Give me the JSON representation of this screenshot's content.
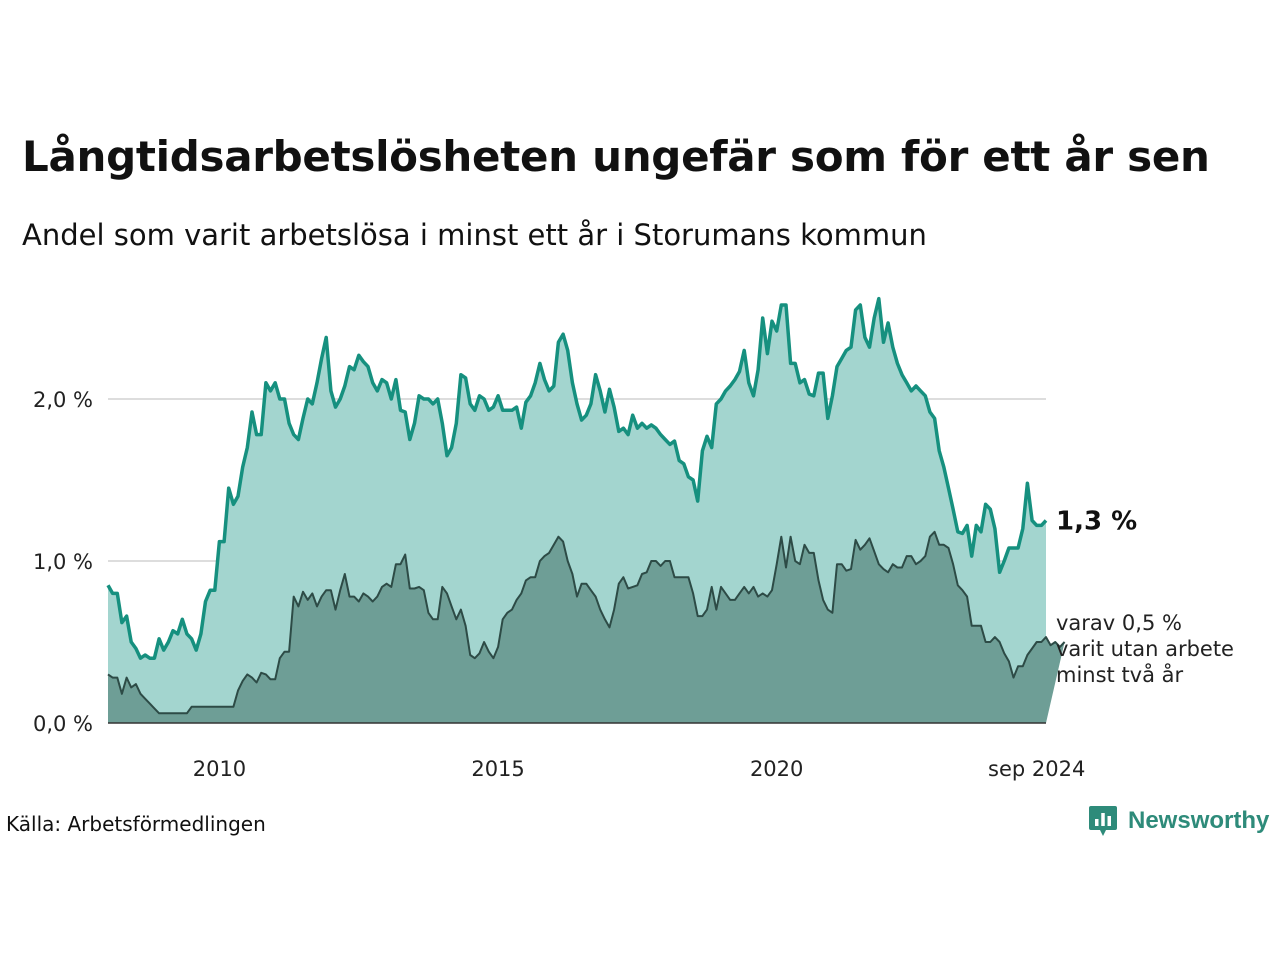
{
  "title": "Långtidsarbetslösheten ungefär som för ett år sen",
  "subtitle": "Andel som varit arbetslösa i minst ett år i Storumans kommun",
  "source": "Källa: Arbetsförmedlingen",
  "brand": {
    "name": "Newsworthy",
    "icon": "bar-chart-icon",
    "color": "#2e8b7a"
  },
  "colors": {
    "area_total": "#a3d5cf",
    "line_total": "#16907f",
    "area_sub": "#6e9e96",
    "line_sub": "#2d4b46",
    "grid": "#dddddd"
  },
  "chart_data": {
    "type": "area",
    "x_start": "jan 2008",
    "x_end": "sep 2024",
    "x_ticks": [
      "2010",
      "2015",
      "2020",
      "sep 2024"
    ],
    "y_ticks": [
      "0,0 %",
      "1,0 %",
      "2,0 %"
    ],
    "ylim": [
      0,
      2.6
    ],
    "grid": true,
    "series": [
      {
        "values": [
          0.85,
          0.8,
          0.8,
          0.62,
          0.66,
          0.5,
          0.46,
          0.4,
          0.42,
          0.4,
          0.4,
          0.52,
          0.45,
          0.5,
          0.57,
          0.55,
          0.64,
          0.55,
          0.52,
          0.45,
          0.55,
          0.75,
          0.82,
          0.82,
          1.12,
          1.12,
          1.45,
          1.35,
          1.4,
          1.58,
          1.7,
          1.92,
          1.78,
          1.78,
          2.1,
          2.05,
          2.1,
          2.0,
          2.0,
          1.85,
          1.78,
          1.75,
          1.88,
          2.0,
          1.97,
          2.1,
          2.25,
          2.38,
          2.05,
          1.95,
          2.0,
          2.08,
          2.2,
          2.18,
          2.27,
          2.23,
          2.2,
          2.1,
          2.05,
          2.12,
          2.1,
          2.0,
          2.12,
          1.93,
          1.92,
          1.75,
          1.85,
          2.02,
          2.0,
          2.0,
          1.97,
          2.0,
          1.85,
          1.65,
          1.7,
          1.85,
          2.15,
          2.13,
          1.97,
          1.93,
          2.02,
          2.0,
          1.93,
          1.95,
          2.02,
          1.93,
          1.93,
          1.93,
          1.95,
          1.82,
          1.98,
          2.02,
          2.1,
          2.22,
          2.12,
          2.05,
          2.08,
          2.35,
          2.4,
          2.3,
          2.1,
          1.97,
          1.87,
          1.9,
          1.97,
          2.15,
          2.05,
          1.92,
          2.06,
          1.95,
          1.8,
          1.82,
          1.78,
          1.9,
          1.82,
          1.85,
          1.82,
          1.84,
          1.82,
          1.78,
          1.75,
          1.72,
          1.74,
          1.62,
          1.6,
          1.52,
          1.5,
          1.37,
          1.68,
          1.77,
          1.7,
          1.97,
          2.0,
          2.05,
          2.08,
          2.12,
          2.17,
          2.3,
          2.1,
          2.02,
          2.18,
          2.5,
          2.28,
          2.48,
          2.42,
          2.58,
          2.58,
          2.22,
          2.22,
          2.1,
          2.12,
          2.03,
          2.02,
          2.16,
          2.16,
          1.88,
          2.02,
          2.2,
          2.25,
          2.3,
          2.32,
          2.55,
          2.58,
          2.38,
          2.32,
          2.5,
          2.62,
          2.35,
          2.47,
          2.32,
          2.22,
          2.15,
          2.1,
          2.05,
          2.08,
          2.05,
          2.02,
          1.92,
          1.88,
          1.68,
          1.58,
          1.45,
          1.32,
          1.18,
          1.17,
          1.22,
          1.03,
          1.22,
          1.18,
          1.35,
          1.32,
          1.2,
          0.93,
          1.0,
          1.08,
          1.08,
          1.08,
          1.2,
          1.48,
          1.25,
          1.22,
          1.22,
          1.25
        ]
      },
      {
        "values": [
          0.3,
          0.28,
          0.28,
          0.18,
          0.28,
          0.22,
          0.24,
          0.18,
          0.15,
          0.12,
          0.09,
          0.06,
          0.06,
          0.06,
          0.06,
          0.06,
          0.06,
          0.06,
          0.1,
          0.1,
          0.1,
          0.1,
          0.1,
          0.1,
          0.1,
          0.1,
          0.1,
          0.1,
          0.2,
          0.26,
          0.3,
          0.28,
          0.25,
          0.31,
          0.3,
          0.27,
          0.27,
          0.4,
          0.44,
          0.44,
          0.78,
          0.72,
          0.81,
          0.76,
          0.8,
          0.72,
          0.78,
          0.82,
          0.82,
          0.7,
          0.82,
          0.92,
          0.78,
          0.78,
          0.75,
          0.8,
          0.78,
          0.75,
          0.78,
          0.84,
          0.86,
          0.84,
          0.98,
          0.98,
          1.04,
          0.83,
          0.83,
          0.84,
          0.82,
          0.68,
          0.64,
          0.64,
          0.84,
          0.8,
          0.72,
          0.64,
          0.7,
          0.6,
          0.42,
          0.4,
          0.43,
          0.5,
          0.44,
          0.4,
          0.47,
          0.64,
          0.68,
          0.7,
          0.76,
          0.8,
          0.88,
          0.9,
          0.9,
          1.0,
          1.03,
          1.05,
          1.1,
          1.15,
          1.12,
          1.0,
          0.92,
          0.78,
          0.86,
          0.86,
          0.82,
          0.78,
          0.7,
          0.64,
          0.59,
          0.7,
          0.86,
          0.9,
          0.83,
          0.84,
          0.85,
          0.92,
          0.93,
          1.0,
          1.0,
          0.97,
          1.0,
          1.0,
          0.9,
          0.9,
          0.9,
          0.9,
          0.8,
          0.66,
          0.66,
          0.7,
          0.84,
          0.7,
          0.84,
          0.8,
          0.76,
          0.76,
          0.8,
          0.84,
          0.8,
          0.84,
          0.78,
          0.8,
          0.78,
          0.82,
          0.98,
          1.15,
          0.96,
          1.15,
          1.0,
          0.98,
          1.1,
          1.05,
          1.05,
          0.88,
          0.76,
          0.7,
          0.68,
          0.98,
          0.98,
          0.94,
          0.95,
          1.13,
          1.07,
          1.1,
          1.14,
          1.06,
          0.98,
          0.95,
          0.93,
          0.98,
          0.96,
          0.96,
          1.03,
          1.03,
          0.98,
          1.0,
          1.03,
          1.15,
          1.18,
          1.1,
          1.1,
          1.08,
          0.98,
          0.85,
          0.82,
          0.78,
          0.6,
          0.6,
          0.6,
          0.5,
          0.5,
          0.53,
          0.5,
          0.43,
          0.38,
          0.28,
          0.35,
          0.35,
          0.42,
          0.46,
          0.5,
          0.5,
          0.53,
          0.48,
          0.5,
          0.47,
          0.5
        ]
      }
    ],
    "end_labels": {
      "total": "1,3 %",
      "sub_lines": [
        "varav 0,5 %",
        "varit utan arbete",
        "minst två år"
      ]
    }
  }
}
